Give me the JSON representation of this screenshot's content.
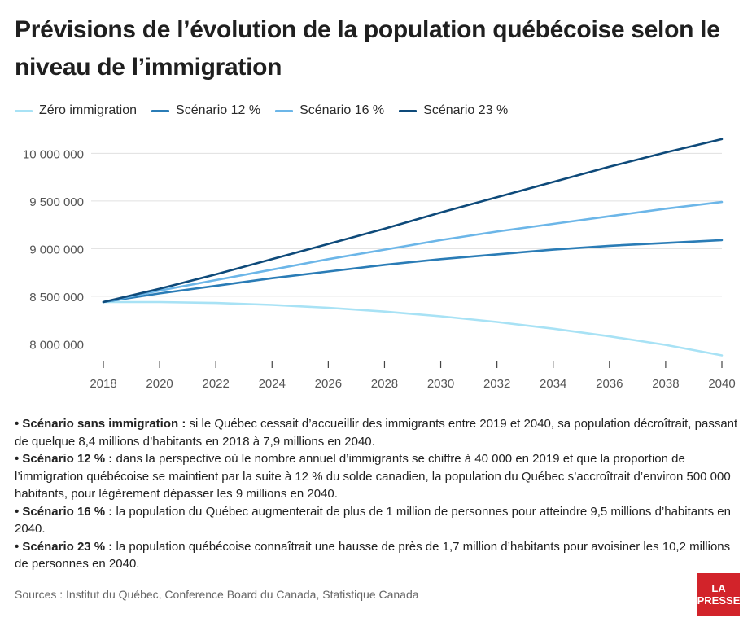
{
  "title": "Prévisions de l’évolution de la population québécoise selon le niveau de l’immigration",
  "colors": {
    "zero": "#a8e2f5",
    "s12": "#2a7cb6",
    "s16": "#6cb6e8",
    "s23": "#0e4a7a",
    "grid": "#e0e0e0",
    "axis": "#444444"
  },
  "chart_data": {
    "type": "line",
    "x": [
      2018,
      2020,
      2022,
      2024,
      2026,
      2028,
      2030,
      2032,
      2034,
      2036,
      2038,
      2040
    ],
    "series": [
      {
        "name": "Zéro immigration",
        "values": [
          8440000,
          8440000,
          8430000,
          8410000,
          8380000,
          8340000,
          8290000,
          8230000,
          8160000,
          8080000,
          7990000,
          7880000
        ]
      },
      {
        "name": "Scénario 12 %",
        "values": [
          8440000,
          8530000,
          8610000,
          8690000,
          8760000,
          8830000,
          8890000,
          8940000,
          8990000,
          9030000,
          9060000,
          9090000
        ]
      },
      {
        "name": "Scénario 16 %",
        "values": [
          8440000,
          8560000,
          8670000,
          8780000,
          8890000,
          8990000,
          9090000,
          9180000,
          9260000,
          9340000,
          9420000,
          9490000
        ]
      },
      {
        "name": "Scénario 23 %",
        "values": [
          8440000,
          8580000,
          8730000,
          8890000,
          9050000,
          9210000,
          9380000,
          9540000,
          9700000,
          9860000,
          10010000,
          10150000
        ]
      }
    ],
    "ylim": [
      7850000,
      10200000
    ],
    "yticks": [
      8000000,
      8500000,
      9000000,
      9500000,
      10000000
    ],
    "ytick_labels": [
      "8 000 000",
      "8 500 000",
      "9 000 000",
      "9 500 000",
      "10 000 000"
    ],
    "xtick_labels": [
      "2018",
      "2020",
      "2022",
      "2024",
      "2026",
      "2028",
      "2030",
      "2032",
      "2034",
      "2036",
      "2038",
      "2040"
    ],
    "grid": "horizontal",
    "legend": "top-left"
  },
  "notes": [
    {
      "label": "• Scénario sans immigration :",
      "text": " si le Québec cessait d’accueillir des immigrants entre 2019 et 2040, sa population décroîtrait, passant de quelque 8,4 millions d’habitants en 2018 à 7,9 millions en 2040."
    },
    {
      "label": "• Scénario 12 % :",
      "text": " dans la perspective où le nombre annuel d’immigrants se chiffre à 40 000 en 2019 et que la proportion de l’immigration québécoise se maintient par la suite à 12 % du solde canadien, la population du Québec s’accroîtrait d’environ 500 000 habitants, pour légèrement dépasser les 9 millions en 2040."
    },
    {
      "label": "• Scénario 16 % :",
      "text": " la population du Québec augmenterait de plus de 1 million de personnes pour atteindre 9,5 millions d’habitants en 2040."
    },
    {
      "label": "• Scénario 23 % :",
      "text": " la population québécoise connaîtrait une hausse de près de 1,7 million d’habitants pour avoisiner les 10,2 millions de personnes en 2040."
    }
  ],
  "sources": "Sources : Institut du Québec, Conference Board du Canada, Statistique Canada",
  "logo": {
    "line1": "LA",
    "line2": "PRESSE"
  }
}
